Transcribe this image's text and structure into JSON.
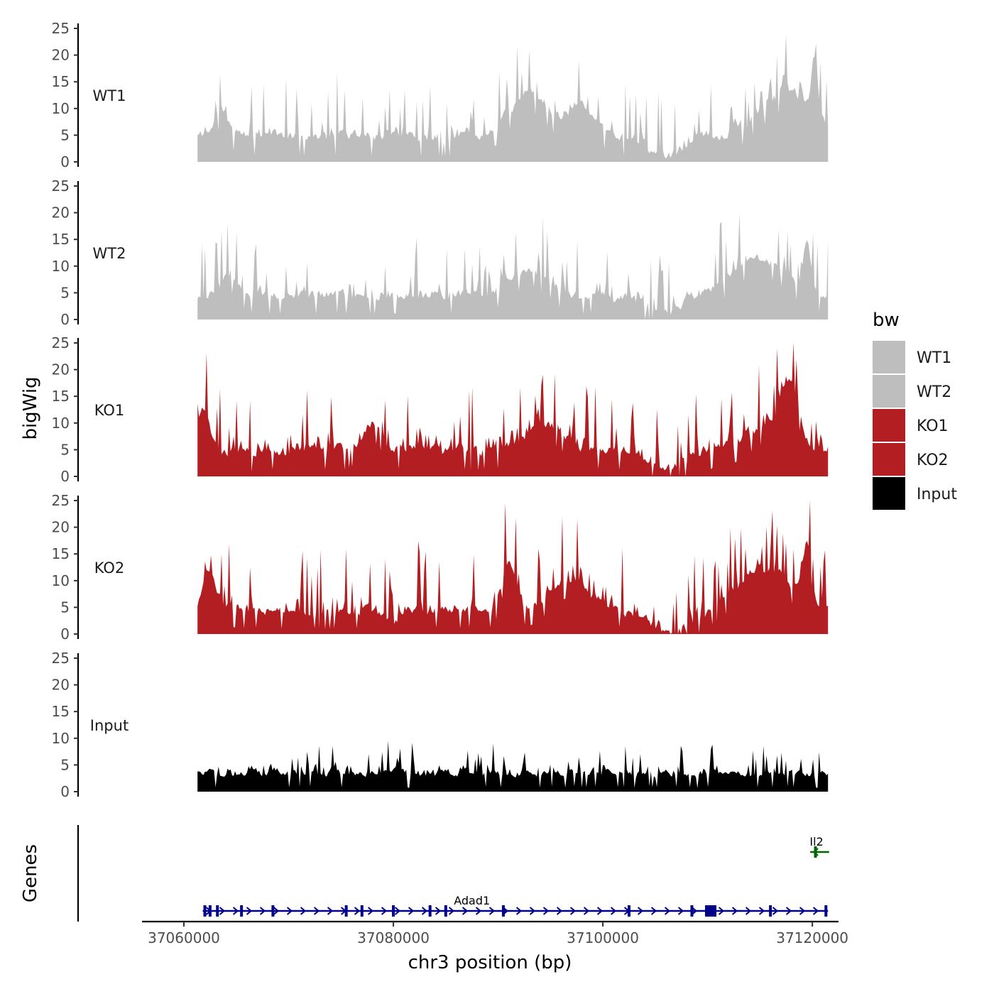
{
  "chart_data": {
    "type": "area",
    "ylabel": "bigWig",
    "genes_label": "Genes",
    "xlabel": "chr3 position (bp)",
    "xlim": [
      37056000,
      37122500
    ],
    "x_ticks": [
      37060000,
      37080000,
      37100000,
      37120000
    ],
    "x_tick_labels": [
      "37060000",
      "37080000",
      "37100000",
      "37120000"
    ],
    "ylim": [
      0,
      25
    ],
    "y_ticks": [
      0,
      5,
      10,
      15,
      20,
      25
    ],
    "y_tick_labels": [
      "0",
      "5",
      "10",
      "15",
      "20",
      "25"
    ],
    "region": [
      37061300,
      37121500
    ],
    "series": [
      {
        "name": "WT1",
        "color": "#bebebe",
        "seed": 11,
        "base": 5,
        "spike": 9,
        "peaks": [
          [
            37063500,
            5,
            900
          ],
          [
            37093000,
            8,
            2800
          ],
          [
            37098000,
            6,
            1600
          ],
          [
            37117500,
            8,
            3500
          ],
          [
            37120200,
            10,
            400
          ]
        ],
        "dips": [
          [
            37106000,
            4,
            2200
          ]
        ]
      },
      {
        "name": "WT2",
        "color": "#bebebe",
        "seed": 23,
        "base": 4.5,
        "spike": 8,
        "peaks": [
          [
            37064500,
            4,
            1000
          ],
          [
            37093000,
            5,
            2500
          ],
          [
            37115000,
            7,
            3500
          ],
          [
            37119500,
            9,
            500
          ]
        ],
        "dips": [
          [
            37105500,
            3.5,
            2200
          ]
        ]
      },
      {
        "name": "KO1",
        "color": "#b21e21",
        "seed": 37,
        "base": 5,
        "spike": 9,
        "peaks": [
          [
            37061800,
            7,
            800
          ],
          [
            37078000,
            5,
            1300
          ],
          [
            37094500,
            5,
            2500
          ],
          [
            37116000,
            5,
            3000
          ],
          [
            37117800,
            10,
            1200
          ]
        ],
        "dips": [
          [
            37106000,
            4,
            2200
          ]
        ]
      },
      {
        "name": "KO2",
        "color": "#b21e21",
        "seed": 53,
        "base": 4.5,
        "spike": 9,
        "peaks": [
          [
            37062500,
            7,
            900
          ],
          [
            37091000,
            9,
            900
          ],
          [
            37097000,
            6,
            2500
          ],
          [
            37115500,
            8,
            3500
          ],
          [
            37119500,
            10,
            600
          ]
        ],
        "dips": [
          [
            37106500,
            4,
            2600
          ],
          [
            37080000,
            2.5,
            800
          ]
        ]
      },
      {
        "name": "Input",
        "color": "#000000",
        "seed": 71,
        "base": 3.5,
        "spike": 4,
        "peaks": [],
        "dips": []
      }
    ],
    "legend": {
      "title": "bw",
      "position": "right",
      "items": [
        {
          "label": "WT1",
          "color": "#bebebe"
        },
        {
          "label": "WT2",
          "color": "#bebebe"
        },
        {
          "label": "KO1",
          "color": "#b21e21"
        },
        {
          "label": "KO2",
          "color": "#b21e21"
        },
        {
          "label": "Input",
          "color": "#000000"
        }
      ]
    },
    "genes": [
      {
        "name": "Adad1",
        "strand": "+",
        "start": 37061800,
        "end": 37121500,
        "color": "#00008b",
        "exons": [
          37062000,
          37062500,
          37063200,
          37065500,
          37068500,
          37075500,
          37077000,
          37080000,
          37083500,
          37085000,
          37090500,
          37102500,
          37108500,
          37116000,
          37121300
        ],
        "main_exon": 37110300
      },
      {
        "name": "Il2",
        "strand": "-",
        "start": 37119800,
        "end": 37121600,
        "color": "#006400",
        "exons": [
          37120300
        ]
      }
    ]
  }
}
